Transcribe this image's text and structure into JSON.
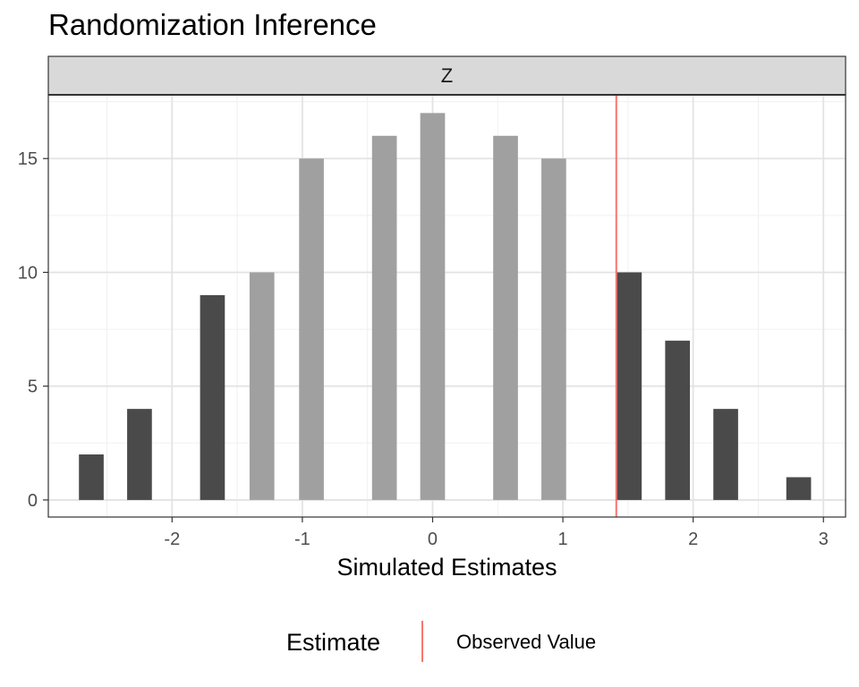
{
  "chart_data": {
    "type": "bar",
    "title": "Randomization Inference",
    "facet_label": "Z",
    "xlabel": "Simulated Estimates",
    "ylabel": "",
    "xlim": [
      -2.95,
      3.17
    ],
    "ylim": [
      -0.75,
      17.8
    ],
    "x_ticks": [
      -2,
      -1,
      0,
      1,
      2,
      3
    ],
    "y_ticks": [
      0,
      5,
      10,
      15
    ],
    "bar_width": 0.19,
    "series": [
      {
        "name": "",
        "color": "#4a4a4a",
        "x": [
          -2.62,
          -2.25,
          -1.69,
          1.51,
          1.88,
          2.25,
          2.81
        ],
        "values": [
          2,
          4,
          9,
          10,
          7,
          4,
          1
        ]
      },
      {
        "name": "",
        "color": "#a0a0a0",
        "x": [
          -1.31,
          -0.93,
          -0.37,
          0.0,
          0.56,
          0.93
        ],
        "values": [
          10,
          15,
          16,
          17,
          16,
          15
        ]
      }
    ],
    "observed_value": 1.41,
    "observed_color": "#f8766d",
    "legend": {
      "title": "Estimate",
      "items": [
        "Observed Value"
      ],
      "position": "bottom"
    },
    "grid": true
  }
}
